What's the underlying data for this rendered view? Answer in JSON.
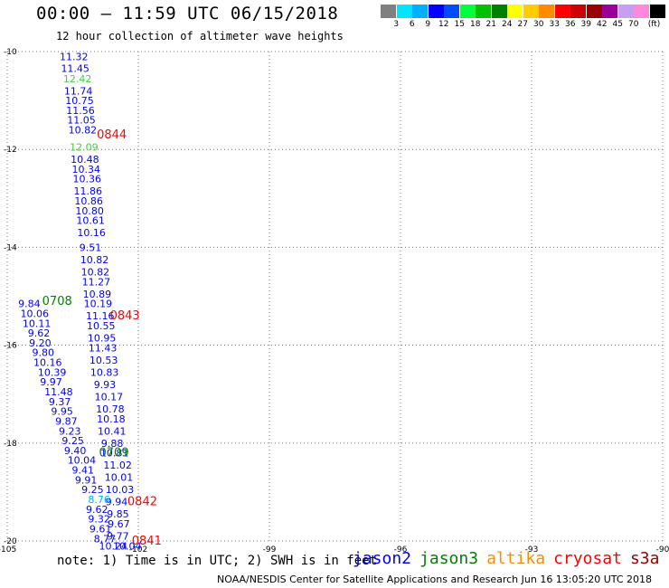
{
  "title": "00:00 – 11:59 UTC 06/15/2018",
  "subtitle": "12 hour collection of altimeter wave heights",
  "note": "note:  1) Time is in UTC;  2) SWH is in feet",
  "credit": "NOAA/NESDIS Center for Satellite Applications and Research    Jun 16 13:05:20 UTC 2018",
  "color_scale": {
    "unit": "(ft)",
    "colors": [
      "#808080",
      "#00e5ff",
      "#00b0ff",
      "#0000ff",
      "#004cff",
      "#00ff40",
      "#00c000",
      "#008000",
      "#ffff00",
      "#ffcc00",
      "#ff8c00",
      "#ff0000",
      "#cc0000",
      "#990000",
      "#990099",
      "#c89ff0",
      "#ff88dd",
      "#000000"
    ],
    "labels": [
      "3",
      "6",
      "9",
      "12",
      "15",
      "18",
      "21",
      "24",
      "27",
      "30",
      "33",
      "36",
      "39",
      "42",
      "45",
      "70"
    ]
  },
  "missions": [
    {
      "name": "jason2",
      "color": "#0000ff"
    },
    {
      "name": "jason3",
      "color": "#008000"
    },
    {
      "name": "altika",
      "color": "#ff8c00"
    },
    {
      "name": "cryosat",
      "color": "#ff0000"
    },
    {
      "name": "s3a",
      "color": "#990000"
    }
  ],
  "chart_data": {
    "type": "scatter",
    "title": "00:00 – 11:59 UTC 06/15/2018",
    "subtitle": "12 hour collection of altimeter wave heights",
    "xlim": [
      -105,
      -90
    ],
    "ylim": [
      -20,
      -10
    ],
    "x_ticks": [
      -105,
      -102,
      -99,
      -96,
      -93,
      -90
    ],
    "y_ticks": [
      -10,
      -12,
      -14,
      -16,
      -18,
      -20
    ],
    "grid": true,
    "series": [
      {
        "name": "jason2",
        "color": "#0000ff",
        "points": [
          {
            "x": -103.8,
            "y": -10.1,
            "label": "11.32"
          },
          {
            "x": -103.77,
            "y": -10.34,
            "label": "11.45"
          },
          {
            "x": -103.7,
            "y": -10.8,
            "label": "11.74"
          },
          {
            "x": -103.67,
            "y": -11.0,
            "label": "10.75"
          },
          {
            "x": -103.65,
            "y": -11.2,
            "label": "11.56"
          },
          {
            "x": -103.63,
            "y": -11.4,
            "label": "11.05"
          },
          {
            "x": -103.6,
            "y": -11.6,
            "label": "10.82"
          },
          {
            "x": -103.55,
            "y": -12.2,
            "label": "10.48"
          },
          {
            "x": -103.52,
            "y": -12.4,
            "label": "10.34"
          },
          {
            "x": -103.5,
            "y": -12.6,
            "label": "10.36"
          },
          {
            "x": -103.48,
            "y": -12.85,
            "label": "11.86"
          },
          {
            "x": -103.46,
            "y": -13.05,
            "label": "10.86"
          },
          {
            "x": -103.44,
            "y": -13.25,
            "label": "10.80"
          },
          {
            "x": -103.42,
            "y": -13.45,
            "label": "10.61"
          },
          {
            "x": -103.4,
            "y": -13.7,
            "label": "10.16"
          },
          {
            "x": -103.35,
            "y": -14.0,
            "label": "9.51"
          },
          {
            "x": -103.33,
            "y": -14.25,
            "label": "10.82"
          },
          {
            "x": -103.31,
            "y": -14.5,
            "label": "10.82"
          },
          {
            "x": -103.29,
            "y": -14.7,
            "label": "11.27"
          },
          {
            "x": -103.27,
            "y": -14.95,
            "label": "10.89"
          },
          {
            "x": -103.25,
            "y": -15.15,
            "label": "10.19"
          },
          {
            "x": -103.2,
            "y": -15.4,
            "label": "11.16"
          },
          {
            "x": -103.18,
            "y": -15.6,
            "label": "10.55"
          },
          {
            "x": -103.16,
            "y": -15.85,
            "label": "10.95"
          },
          {
            "x": -103.14,
            "y": -16.05,
            "label": "11.43"
          },
          {
            "x": -103.12,
            "y": -16.3,
            "label": "10.53"
          },
          {
            "x": -103.1,
            "y": -16.55,
            "label": "10.83"
          },
          {
            "x": -103.02,
            "y": -16.8,
            "label": "9.93"
          },
          {
            "x": -103.0,
            "y": -17.05,
            "label": "10.17"
          },
          {
            "x": -102.97,
            "y": -17.3,
            "label": "10.78"
          },
          {
            "x": -102.95,
            "y": -17.5,
            "label": "10.18"
          },
          {
            "x": -102.93,
            "y": -17.75,
            "label": "10.41"
          },
          {
            "x": -102.85,
            "y": -18.0,
            "label": "9.88"
          },
          {
            "x": -102.87,
            "y": -18.2,
            "label": "10.81"
          },
          {
            "x": -102.8,
            "y": -18.45,
            "label": "11.02"
          },
          {
            "x": -102.77,
            "y": -18.7,
            "label": "10.01"
          },
          {
            "x": -102.75,
            "y": -18.95,
            "label": "10.03"
          },
          {
            "x": -102.75,
            "y": -19.2,
            "label": "9.94"
          },
          {
            "x": -102.72,
            "y": -19.45,
            "label": "9.85"
          },
          {
            "x": -102.7,
            "y": -19.65,
            "label": "9.67"
          },
          {
            "x": -102.72,
            "y": -19.9,
            "label": "9.77"
          },
          {
            "x": -102.58,
            "y": -20.1,
            "label": "10.04"
          },
          {
            "x": -104.75,
            "y": -15.15,
            "label": "9.84"
          },
          {
            "x": -104.7,
            "y": -15.35,
            "label": "10.06"
          },
          {
            "x": -104.65,
            "y": -15.55,
            "label": "10.11"
          },
          {
            "x": -104.53,
            "y": -15.75,
            "label": "9.62"
          },
          {
            "x": -104.5,
            "y": -15.95,
            "label": "9.20"
          },
          {
            "x": -104.43,
            "y": -16.15,
            "label": "9.80"
          },
          {
            "x": -104.4,
            "y": -16.35,
            "label": "10.16"
          },
          {
            "x": -104.3,
            "y": -16.55,
            "label": "10.39"
          },
          {
            "x": -104.25,
            "y": -16.75,
            "label": "9.97"
          },
          {
            "x": -104.15,
            "y": -16.95,
            "label": "11.48"
          },
          {
            "x": -104.05,
            "y": -17.15,
            "label": "9.37"
          },
          {
            "x": -104.0,
            "y": -17.35,
            "label": "9.95"
          },
          {
            "x": -103.9,
            "y": -17.55,
            "label": "9.87"
          },
          {
            "x": -103.82,
            "y": -17.75,
            "label": "9.23"
          },
          {
            "x": -103.75,
            "y": -17.95,
            "label": "9.25"
          },
          {
            "x": -103.7,
            "y": -18.15,
            "label": "9.40"
          },
          {
            "x": -103.62,
            "y": -18.35,
            "label": "10.04"
          },
          {
            "x": -103.52,
            "y": -18.55,
            "label": "9.41"
          },
          {
            "x": -103.45,
            "y": -18.75,
            "label": "9.91"
          },
          {
            "x": -103.3,
            "y": -18.95,
            "label": "9.25"
          },
          {
            "x": -103.2,
            "y": -19.35,
            "label": "9.62"
          },
          {
            "x": -103.15,
            "y": -19.55,
            "label": "9.32"
          },
          {
            "x": -103.12,
            "y": -19.75,
            "label": "9.61"
          },
          {
            "x": -103.02,
            "y": -19.95,
            "label": "8.77"
          },
          {
            "x": -102.9,
            "y": -20.1,
            "label": "10.24"
          }
        ]
      },
      {
        "name": "jason2-cyan",
        "color": "#00b0ff",
        "points": [
          {
            "x": -103.15,
            "y": -19.15,
            "label": "8.76"
          }
        ]
      },
      {
        "name": "altika-highlight",
        "color": "#40d040",
        "points": [
          {
            "x": -103.72,
            "y": -10.55,
            "label": "12.42"
          },
          {
            "x": -103.57,
            "y": -11.95,
            "label": "12.09"
          }
        ]
      },
      {
        "name": "jason3",
        "color": "#008000",
        "points": [
          {
            "x": -104.2,
            "y": -15.1,
            "label": "0708"
          },
          {
            "x": -102.9,
            "y": -18.2,
            "label": "0709"
          }
        ]
      },
      {
        "name": "cryosat",
        "color": "#ff0000",
        "points": [
          {
            "x": -102.95,
            "y": -11.7,
            "label": "0844"
          },
          {
            "x": -102.65,
            "y": -15.4,
            "label": "0843"
          },
          {
            "x": -102.25,
            "y": -19.2,
            "label": "0842"
          },
          {
            "x": -102.15,
            "y": -20.0,
            "label": "0841"
          }
        ]
      }
    ]
  }
}
